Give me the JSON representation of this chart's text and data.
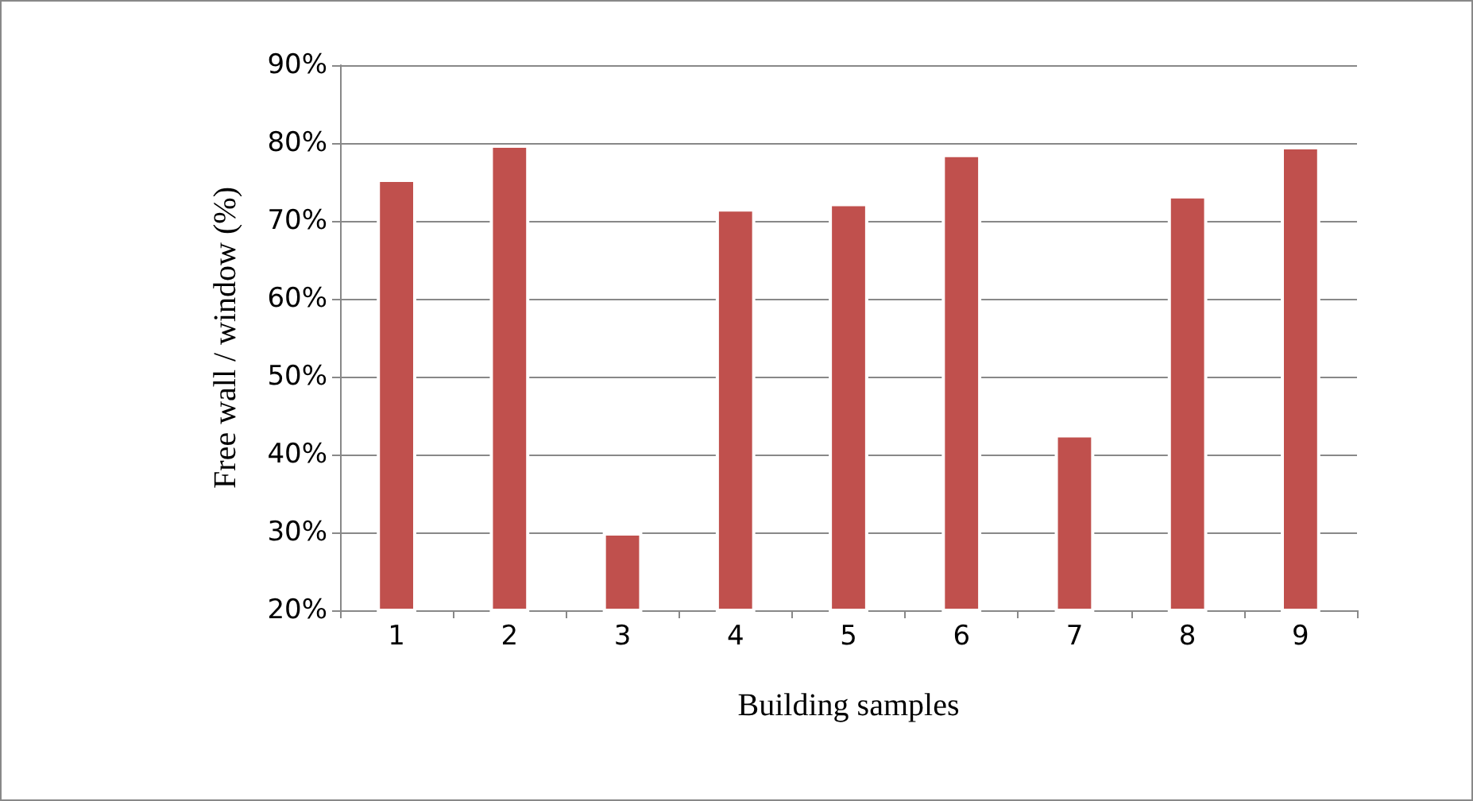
{
  "chart_data": {
    "type": "bar",
    "xlabel": "Building samples",
    "ylabel": "Free wall / window (%)",
    "categories": [
      "1",
      "2",
      "3",
      "4",
      "5",
      "6",
      "7",
      "8",
      "9"
    ],
    "values": [
      75.4,
      79.8,
      30,
      71.6,
      72.3,
      78.6,
      42.6,
      73.3,
      79.6
    ],
    "color": "#c0504d",
    "ylim": [
      20,
      90
    ],
    "yticks": [
      {
        "value": 20,
        "label": "20%"
      },
      {
        "value": 30,
        "label": "30%"
      },
      {
        "value": 40,
        "label": "40%"
      },
      {
        "value": 50,
        "label": "50%"
      },
      {
        "value": 60,
        "label": "60%"
      },
      {
        "value": 70,
        "label": "70%"
      },
      {
        "value": 80,
        "label": "80%"
      },
      {
        "value": 90,
        "label": "90%"
      }
    ],
    "grid": "y"
  }
}
